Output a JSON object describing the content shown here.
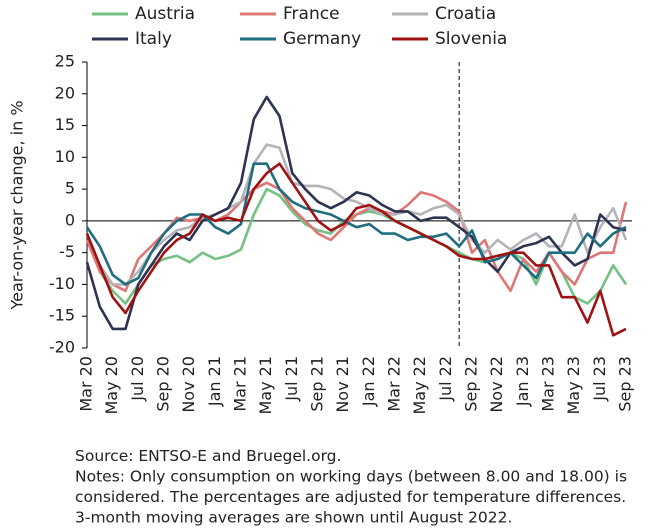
{
  "chart_data": {
    "type": "line",
    "y_label": "Year-on-year change, in %",
    "categories": [
      "Mar 20",
      null,
      "May 20",
      null,
      "Jul 20",
      null,
      "Sep 20",
      null,
      "Nov 20",
      null,
      "Jan 21",
      null,
      "Mar 21",
      null,
      "May 21",
      null,
      "Jul 21",
      null,
      "Sep 21",
      null,
      "Nov 21",
      null,
      "Jan 22",
      null,
      "Mar 22",
      null,
      "May 22",
      null,
      "Jul 22",
      null,
      "Sep 22",
      null,
      "Nov 22",
      null,
      "Jan 23",
      null,
      "Mar 23",
      null,
      "May 23",
      null,
      "Jul 23",
      null,
      "Sep 23"
    ],
    "vertical_line_at": 29,
    "ylim": [
      -20,
      25
    ],
    "yticks": [
      -20,
      -15,
      -10,
      -5,
      0,
      5,
      10,
      15,
      20,
      25
    ],
    "legend": "top",
    "series": [
      {
        "name": "Austria",
        "color": "#74c183",
        "values": [
          -2,
          -8,
          -11,
          -13,
          -10,
          -7,
          -6,
          -5.5,
          -6.5,
          -5,
          -6,
          -5.5,
          -4.5,
          1,
          5,
          4,
          1.5,
          -0.5,
          -1.5,
          -2,
          0,
          1,
          1.5,
          1,
          0,
          -1,
          -2,
          -3,
          -4,
          -5,
          -6,
          -6.5,
          -6,
          -5,
          -6,
          -10,
          -5,
          -8,
          -12,
          -13,
          -11,
          -7,
          -10
        ]
      },
      {
        "name": "France",
        "color": "#e07575",
        "values": [
          -3,
          -8,
          -10,
          -11,
          -6,
          -4,
          -2,
          0.5,
          0,
          0.5,
          0,
          1,
          3,
          5,
          6,
          5,
          2,
          0,
          -2,
          -3,
          -1,
          1,
          2,
          1.5,
          1,
          2.5,
          4.5,
          4,
          3,
          1.5,
          -5,
          -3,
          -8,
          -11,
          -6,
          -8,
          -5,
          -8,
          -10,
          -6,
          -5,
          -5,
          3
        ]
      },
      {
        "name": "Croatia",
        "color": "#b3b3b8",
        "values": [
          -2,
          -7,
          -10,
          -10,
          -8,
          -5,
          -3,
          -1.5,
          -1,
          0.5,
          1,
          2,
          3,
          9,
          12,
          11.5,
          6,
          5.5,
          5.5,
          5,
          3.5,
          3,
          2,
          1,
          1,
          1.5,
          1,
          2,
          2.5,
          1,
          -3,
          -5,
          -3,
          -4.5,
          -3,
          -2,
          -4,
          -4,
          1,
          -5,
          -1,
          2,
          -3
        ]
      },
      {
        "name": "Italy",
        "color": "#2d3350",
        "values": [
          -6.5,
          -13.5,
          -17,
          -17,
          -10,
          -7,
          -4,
          -2,
          -3,
          0,
          1,
          2,
          6,
          16,
          19.5,
          16.5,
          7.5,
          5,
          3,
          2,
          3,
          4.5,
          4,
          2.5,
          1.5,
          1.5,
          0,
          0.5,
          0.5,
          -1,
          -2.5,
          -6,
          -8,
          -5,
          -4,
          -3.5,
          -2.5,
          -5,
          -7,
          -6,
          1,
          -1,
          -1.5
        ]
      },
      {
        "name": "Germany",
        "color": "#1e6e80",
        "values": [
          -1,
          -4,
          -8.5,
          -10,
          -9,
          -5,
          -2,
          0,
          1,
          1,
          -1,
          -2,
          -0.5,
          9,
          9,
          5,
          3,
          2,
          1.5,
          1,
          0,
          -1,
          -0.5,
          -2,
          -2,
          -3,
          -2.5,
          -2.5,
          -2,
          -4,
          -1.5,
          -6.5,
          -6,
          -5,
          -7,
          -9,
          -5,
          -5,
          -5,
          -2,
          -4,
          -2,
          -1
        ]
      },
      {
        "name": "Slovenia",
        "color": "#a01212",
        "values": [
          -2,
          -7,
          -12,
          -14.5,
          -11,
          -8,
          -5,
          -3,
          -2,
          1,
          0,
          0.5,
          0,
          5,
          7.5,
          9,
          6,
          3,
          0,
          -1.5,
          -0.5,
          2,
          2.5,
          1.5,
          0,
          -1,
          -2,
          -3,
          -4,
          -5.5,
          -6,
          -6,
          -5.5,
          -5,
          -5,
          -7,
          -7,
          -12,
          -12,
          -16,
          -11,
          -18,
          -17
        ]
      }
    ],
    "notes": [
      "Source: ENTSO-E and Bruegel.org.",
      "Notes: Only consumption on working days (between 8.00 and 18.00) is",
      "considered. The percentages are adjusted for temperature differences.",
      "3-month moving averages are shown until August 2022."
    ]
  }
}
